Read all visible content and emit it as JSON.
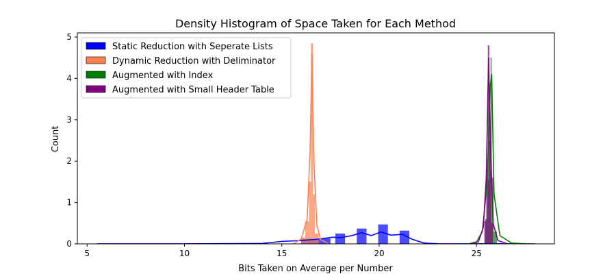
{
  "chart_data": {
    "type": "histogram",
    "title": "Density Histogram of Space Taken for Each Method",
    "xlabel": "Bits Taken on Average per Number",
    "ylabel": "Count",
    "xlim": [
      4.5,
      29.0
    ],
    "ylim": [
      0,
      5.1
    ],
    "xticks": [
      5,
      10,
      15,
      20,
      25
    ],
    "yticks": [
      0,
      1,
      2,
      3,
      4,
      5
    ],
    "grid": false,
    "legend_position": "top-left",
    "series": [
      {
        "name": "Static Reduction with Seperate Lists",
        "color": "#0000ff",
        "bars": [
          {
            "x0": 16.0,
            "x1": 16.5,
            "y": 0.12
          },
          {
            "x0": 16.5,
            "x1": 17.0,
            "y": 0.1
          },
          {
            "x0": 17.0,
            "x1": 17.5,
            "y": 0.13
          },
          {
            "x0": 17.75,
            "x1": 18.25,
            "y": 0.25
          },
          {
            "x0": 18.85,
            "x1": 19.35,
            "y": 0.37
          },
          {
            "x0": 19.95,
            "x1": 20.45,
            "y": 0.47
          },
          {
            "x0": 21.05,
            "x1": 21.55,
            "y": 0.32
          }
        ],
        "kde": [
          [
            5.5,
            0.001
          ],
          [
            10,
            0.002
          ],
          [
            14,
            0.01
          ],
          [
            15,
            0.06
          ],
          [
            16,
            0.08
          ],
          [
            17,
            0.12
          ],
          [
            17.6,
            0.16
          ],
          [
            18,
            0.15
          ],
          [
            18.6,
            0.2
          ],
          [
            19.1,
            0.27
          ],
          [
            19.6,
            0.2
          ],
          [
            20.1,
            0.29
          ],
          [
            20.6,
            0.21
          ],
          [
            21.2,
            0.23
          ],
          [
            21.7,
            0.11
          ],
          [
            22.3,
            0.02
          ],
          [
            23,
            0.003
          ],
          [
            28,
            0.0
          ]
        ]
      },
      {
        "name": "Dynamic Reduction with Deliminator",
        "color": "#ff7f50",
        "bars": [
          {
            "x0": 16.0,
            "x1": 16.2,
            "y": 0.15
          },
          {
            "x0": 16.2,
            "x1": 16.4,
            "y": 0.55
          },
          {
            "x0": 16.4,
            "x1": 16.5,
            "y": 1.5
          },
          {
            "x0": 16.5,
            "x1": 16.6,
            "y": 4.85
          },
          {
            "x0": 16.6,
            "x1": 16.7,
            "y": 1.2
          },
          {
            "x0": 16.7,
            "x1": 16.9,
            "y": 0.25
          }
        ],
        "kde": [
          [
            15.6,
            0.0
          ],
          [
            16.0,
            0.12
          ],
          [
            16.3,
            0.6
          ],
          [
            16.45,
            2.2
          ],
          [
            16.55,
            4.6
          ],
          [
            16.65,
            2.0
          ],
          [
            16.8,
            0.45
          ],
          [
            17.0,
            0.1
          ],
          [
            17.4,
            0.0
          ]
        ]
      },
      {
        "name": "Augmented with Index",
        "color": "#008000",
        "bars": [
          {
            "x0": 25.45,
            "x1": 25.55,
            "y": 0.6
          },
          {
            "x0": 25.55,
            "x1": 25.65,
            "y": 1.55
          },
          {
            "x0": 25.65,
            "x1": 25.72,
            "y": 3.0
          },
          {
            "x0": 25.72,
            "x1": 25.78,
            "y": 4.5
          },
          {
            "x0": 25.78,
            "x1": 25.88,
            "y": 1.6
          },
          {
            "x0": 25.88,
            "x1": 26.05,
            "y": 0.3
          }
        ],
        "kde": [
          [
            24.6,
            0.0
          ],
          [
            25.0,
            0.05
          ],
          [
            25.3,
            0.3
          ],
          [
            25.55,
            1.5
          ],
          [
            25.7,
            3.8
          ],
          [
            25.78,
            4.1
          ],
          [
            25.9,
            1.2
          ],
          [
            26.2,
            0.2
          ],
          [
            26.8,
            0.02
          ],
          [
            27.5,
            0.0
          ]
        ]
      },
      {
        "name": "Augmented with Small Header Table",
        "color": "#800080",
        "bars": [
          {
            "x0": 25.4,
            "x1": 25.5,
            "y": 0.55
          },
          {
            "x0": 25.5,
            "x1": 25.58,
            "y": 1.6
          },
          {
            "x0": 25.58,
            "x1": 25.66,
            "y": 4.8
          },
          {
            "x0": 25.66,
            "x1": 25.75,
            "y": 2.5
          },
          {
            "x0": 25.75,
            "x1": 25.85,
            "y": 0.5
          }
        ],
        "kde": [
          [
            24.7,
            0.0
          ],
          [
            25.1,
            0.05
          ],
          [
            25.35,
            0.4
          ],
          [
            25.5,
            1.6
          ],
          [
            25.62,
            4.5
          ],
          [
            25.72,
            2.4
          ],
          [
            25.85,
            0.5
          ],
          [
            26.1,
            0.08
          ],
          [
            26.6,
            0.0
          ]
        ]
      }
    ]
  }
}
